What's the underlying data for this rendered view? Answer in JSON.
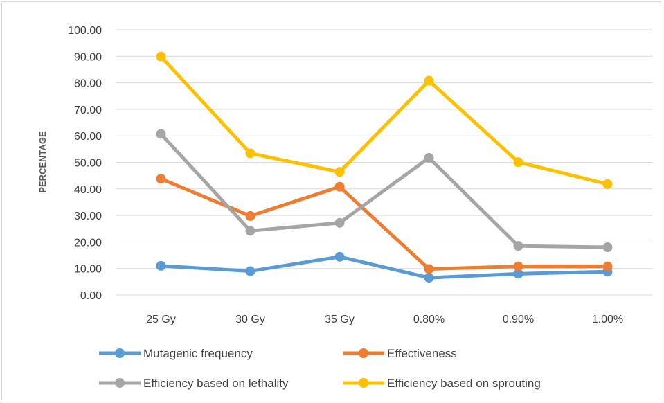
{
  "chart_data": {
    "type": "line",
    "title": "",
    "xlabel": "",
    "ylabel": "PERCENTAGE",
    "categories": [
      "25 Gy",
      "30 Gy",
      "35 Gy",
      "0.80%",
      "0.90%",
      "1.00%"
    ],
    "ylim": [
      0,
      100
    ],
    "yticks": [
      "0.00",
      "10.00",
      "20.00",
      "30.00",
      "40.00",
      "50.00",
      "60.00",
      "70.00",
      "80.00",
      "90.00",
      "100.00"
    ],
    "grid": true,
    "legend_position": "bottom",
    "series": [
      {
        "name": "Mutagenic frequency",
        "color": "#5b9bd5",
        "values": [
          11.0,
          9.0,
          14.4,
          6.5,
          8.0,
          8.8
        ]
      },
      {
        "name": "Effectiveness",
        "color": "#ed7d31",
        "values": [
          43.8,
          29.8,
          40.8,
          9.8,
          10.8,
          10.8
        ]
      },
      {
        "name": "Efficiency based on lethality",
        "color": "#a5a5a5",
        "values": [
          60.7,
          24.2,
          27.2,
          51.7,
          18.5,
          18.0
        ]
      },
      {
        "name": "Efficiency based on sprouting",
        "color": "#ffc000",
        "values": [
          89.9,
          53.4,
          46.4,
          80.8,
          50.1,
          41.8
        ]
      }
    ]
  }
}
